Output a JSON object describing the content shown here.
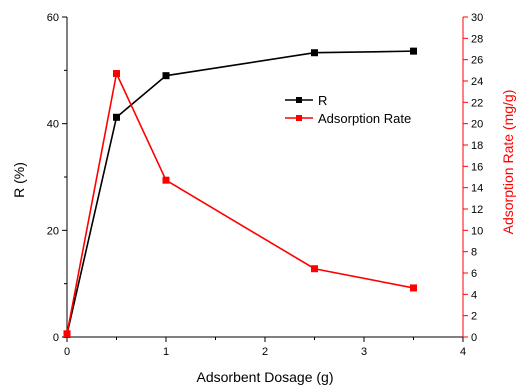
{
  "chart_data": {
    "type": "line",
    "x": [
      0,
      0.5,
      1,
      2.5,
      3.5
    ],
    "xlabel": "Adsorbent Dosage (g)",
    "xlim": [
      0,
      4
    ],
    "xticks": [
      "0",
      "1",
      "2",
      "3",
      "4"
    ],
    "ylabel": "R (%)",
    "ylim": [
      0,
      60
    ],
    "yticks": [
      "0",
      "20",
      "40",
      "60"
    ],
    "y2label": "Adsorption Rate (mg/g)",
    "y2lim": [
      0,
      30
    ],
    "y2ticks": [
      "0",
      "2",
      "4",
      "6",
      "8",
      "10",
      "12",
      "14",
      "16",
      "18",
      "20",
      "22",
      "24",
      "26",
      "28",
      "30"
    ],
    "grid": false,
    "legend_position": "right",
    "series": [
      {
        "name": "R",
        "axis": "left",
        "color": "#000000",
        "marker": "square",
        "values": [
          0.5,
          41.2,
          49.0,
          53.3,
          53.6
        ]
      },
      {
        "name": "Adsorption Rate",
        "axis": "right",
        "color": "#ff0000",
        "marker": "square",
        "values": [
          0.3,
          24.7,
          14.7,
          6.4,
          4.6
        ]
      }
    ]
  }
}
